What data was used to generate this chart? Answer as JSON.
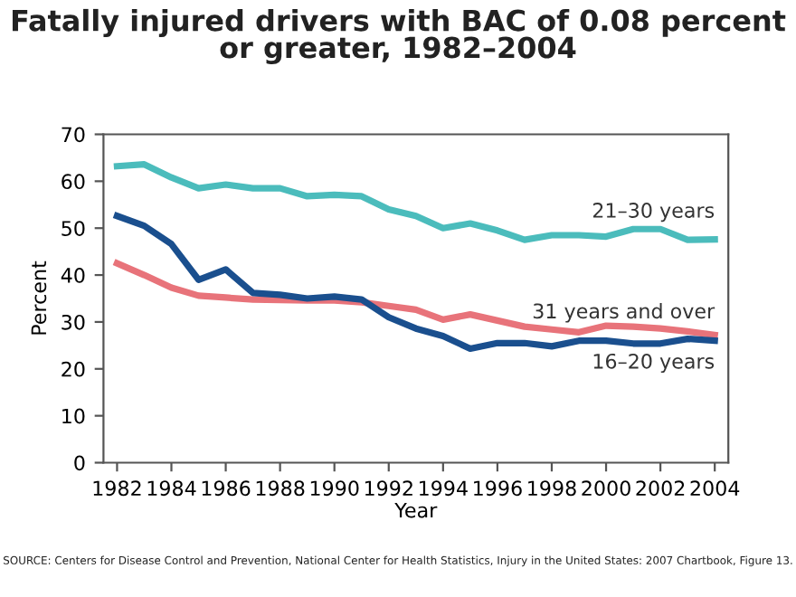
{
  "chart_data": {
    "type": "line",
    "title": "Fatally injured drivers with BAC of 0.08 percent\nor greater, 1982–2004",
    "xlabel": "Year",
    "ylabel": "Percent",
    "x": [
      1982,
      1983,
      1984,
      1985,
      1986,
      1987,
      1988,
      1989,
      1990,
      1991,
      1992,
      1993,
      1994,
      1995,
      1996,
      1997,
      1998,
      1999,
      2000,
      2001,
      2002,
      2003,
      2004
    ],
    "series": [
      {
        "name": "21–30 years",
        "color": "#4bbcbc",
        "values": [
          63.2,
          63.6,
          60.8,
          58.5,
          59.3,
          58.5,
          58.5,
          56.8,
          57.1,
          56.8,
          54,
          52.6,
          50,
          51,
          49.5,
          47.5,
          48.5,
          48.5,
          48.2,
          49.8,
          49.8,
          47.5,
          47.6
        ]
      },
      {
        "name": "31 years and over",
        "color": "#e8737a",
        "values": [
          42.5,
          40,
          37.3,
          35.6,
          35.2,
          34.8,
          34.7,
          34.6,
          34.6,
          34.2,
          33.4,
          32.6,
          30.5,
          31.6,
          30.3,
          29,
          28.4,
          27.8,
          29.2,
          29,
          28.6,
          28,
          27.2
        ]
      },
      {
        "name": "16–20 years",
        "color": "#1a4f8e",
        "values": [
          52.6,
          50.5,
          46.6,
          39,
          41.2,
          36.2,
          35.8,
          35,
          35.4,
          34.8,
          31,
          28.6,
          27,
          24.3,
          25.5,
          25.5,
          24.8,
          26,
          26,
          25.4,
          25.4,
          26.4,
          26
        ]
      }
    ],
    "xlim": [
      1981.5,
      2004.5
    ],
    "ylim": [
      0,
      70
    ],
    "xticks": [
      1982,
      1984,
      1986,
      1988,
      1990,
      1992,
      1994,
      1996,
      1998,
      2000,
      2002,
      2004
    ],
    "yticks": [
      0,
      10,
      20,
      30,
      40,
      50,
      60,
      70
    ],
    "grid": false,
    "legend": false,
    "marker": "none",
    "line_style": "solid",
    "annotations": [
      "SOURCE: Centers for Disease Control and Prevention, National Center for Health Statistics, Injury in the United States: 2007 Chartbook, Figure 13."
    ]
  }
}
